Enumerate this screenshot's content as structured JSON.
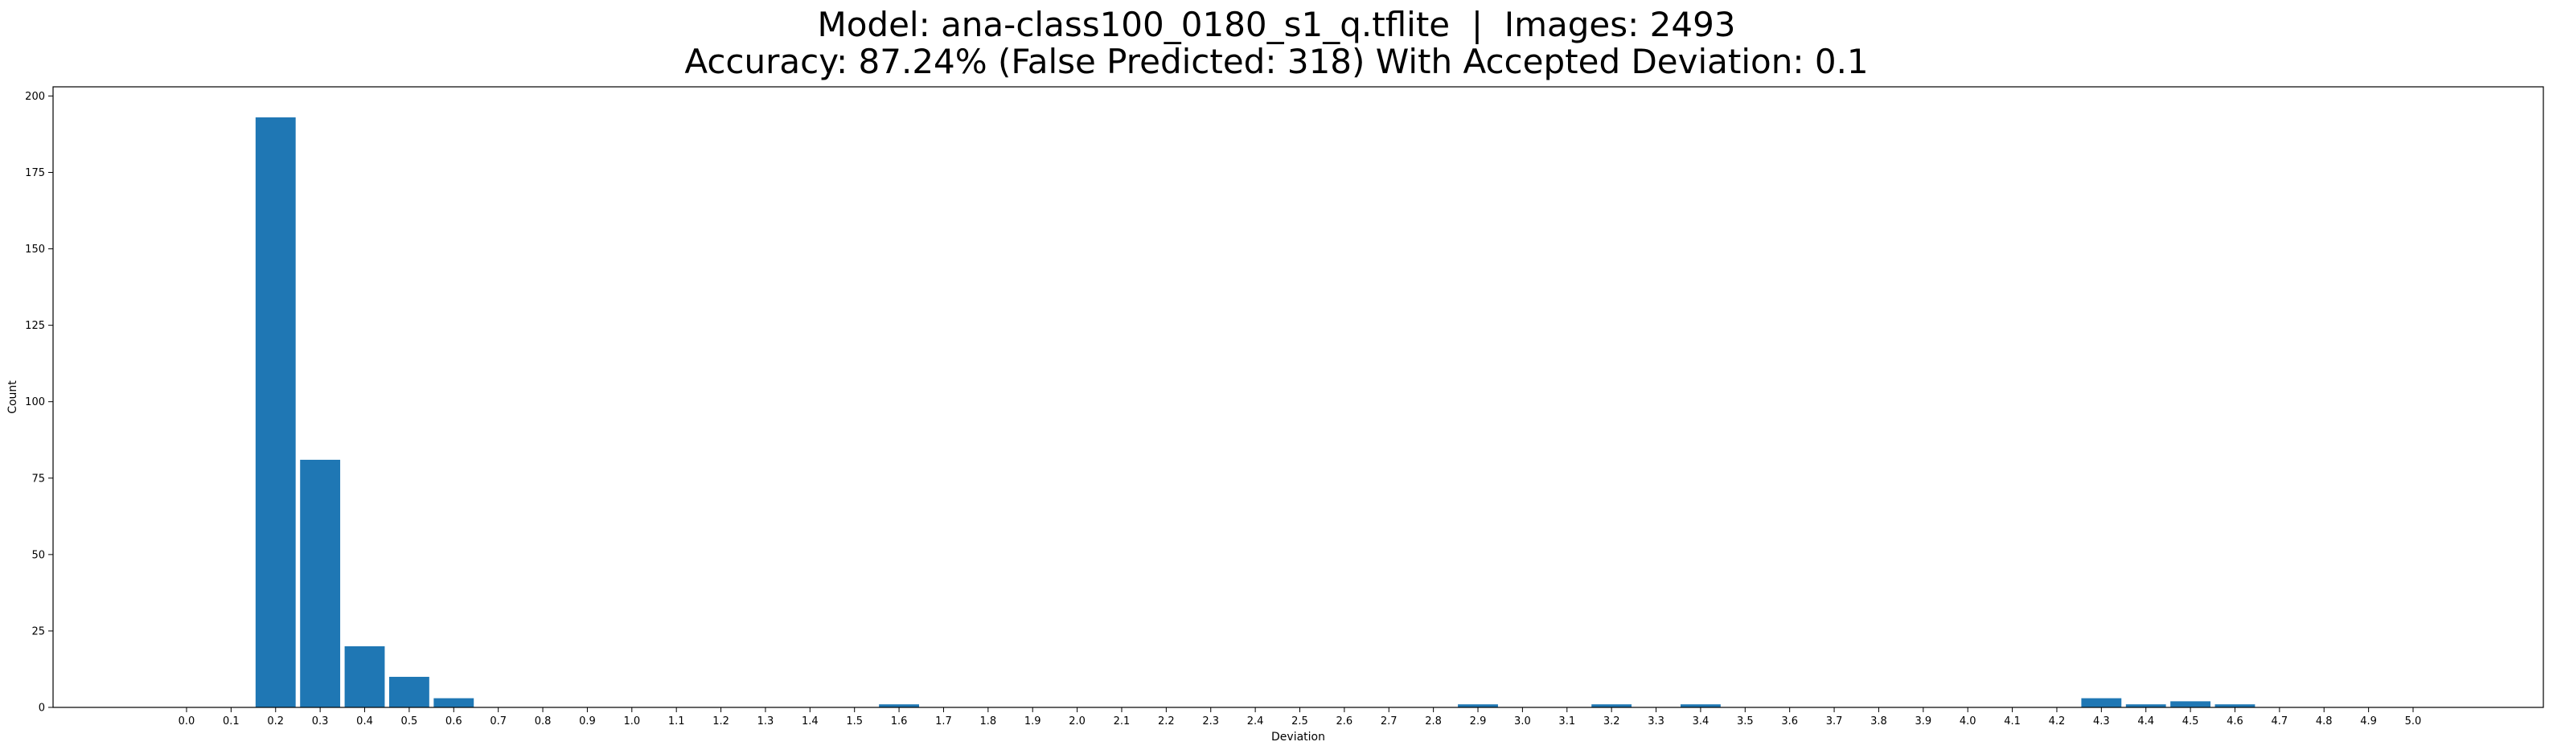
{
  "chart_data": {
    "type": "bar",
    "title_lines": [
      "Model: ana-class100_0180_s1_q.tflite  |  Images: 2493",
      "Accuracy: 87.24% (False Predicted: 318) With Accepted Deviation: 0.1"
    ],
    "xlabel": "Deviation",
    "ylabel": "Count",
    "categories": [
      "0.0",
      "0.1",
      "0.2",
      "0.3",
      "0.4",
      "0.5",
      "0.6",
      "0.7",
      "0.8",
      "0.9",
      "1.0",
      "1.1",
      "1.2",
      "1.3",
      "1.4",
      "1.5",
      "1.6",
      "1.7",
      "1.8",
      "1.9",
      "2.0",
      "2.1",
      "2.2",
      "2.3",
      "2.4",
      "2.5",
      "2.6",
      "2.7",
      "2.8",
      "2.9",
      "3.0",
      "3.1",
      "3.2",
      "3.3",
      "3.4",
      "3.5",
      "3.6",
      "3.7",
      "3.8",
      "3.9",
      "4.0",
      "4.1",
      "4.2",
      "4.3",
      "4.4",
      "4.5",
      "4.6",
      "4.7",
      "4.8",
      "4.9",
      "5.0"
    ],
    "values": [
      0,
      0,
      193,
      81,
      20,
      10,
      3,
      0,
      0,
      0,
      0,
      0,
      0,
      0,
      0,
      0,
      1,
      0,
      0,
      0,
      0,
      0,
      0,
      0,
      0,
      0,
      0,
      0,
      0,
      1,
      0,
      0,
      1,
      0,
      1,
      0,
      0,
      0,
      0,
      0,
      0,
      0,
      0,
      3,
      1,
      2,
      1,
      0,
      0,
      0,
      0
    ],
    "yticks": [
      "0",
      "25",
      "50",
      "75",
      "100",
      "125",
      "150",
      "175",
      "200"
    ],
    "ylim": [
      0,
      203
    ],
    "grid": false,
    "bar_color": "#1f77b4"
  }
}
